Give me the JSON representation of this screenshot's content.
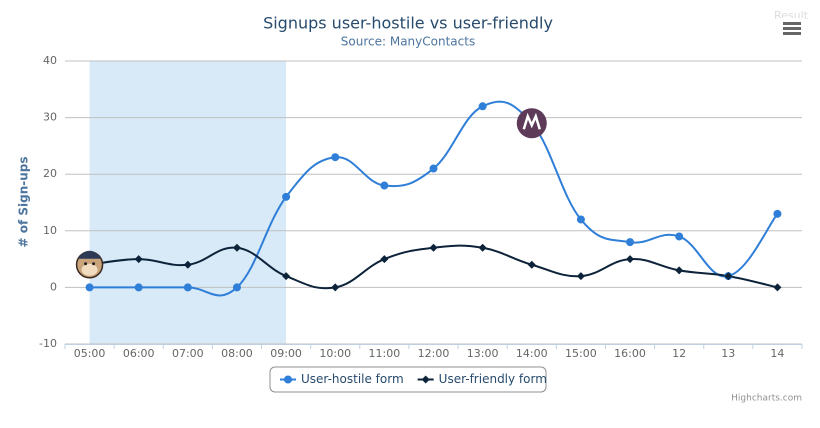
{
  "chart_data": {
    "type": "line",
    "title": "Signups user-hostile vs user-friendly",
    "subtitle": "Source: ManyContacts",
    "y_axis_title": "# of Sign-ups",
    "categories": [
      "05:00",
      "06:00",
      "07:00",
      "08:00",
      "09:00",
      "10:00",
      "11:00",
      "12:00",
      "13:00",
      "14:00",
      "15:00",
      "16:00",
      "12",
      "13",
      "14"
    ],
    "series": [
      {
        "name": "User-hostile form",
        "color": "#2f7ed8",
        "marker": "circle",
        "values": [
          0,
          0,
          0,
          0,
          16,
          23,
          18,
          21,
          32,
          29,
          12,
          8,
          9,
          2,
          13
        ]
      },
      {
        "name": "User-friendly form",
        "color": "#0d233a",
        "marker": "diamond",
        "values": [
          4,
          5,
          4,
          7,
          2,
          0,
          5,
          7,
          7,
          4,
          2,
          5,
          3,
          2,
          0
        ]
      }
    ],
    "ylim": [
      -10,
      40
    ],
    "yticks": [
      -10,
      0,
      10,
      20,
      30,
      40
    ],
    "grid": true,
    "plot_band": {
      "from": 0,
      "to": 4,
      "color": "#d8eaf8"
    },
    "legend": "bottom",
    "credits": "Highcharts.com",
    "corner_text": "Result"
  }
}
